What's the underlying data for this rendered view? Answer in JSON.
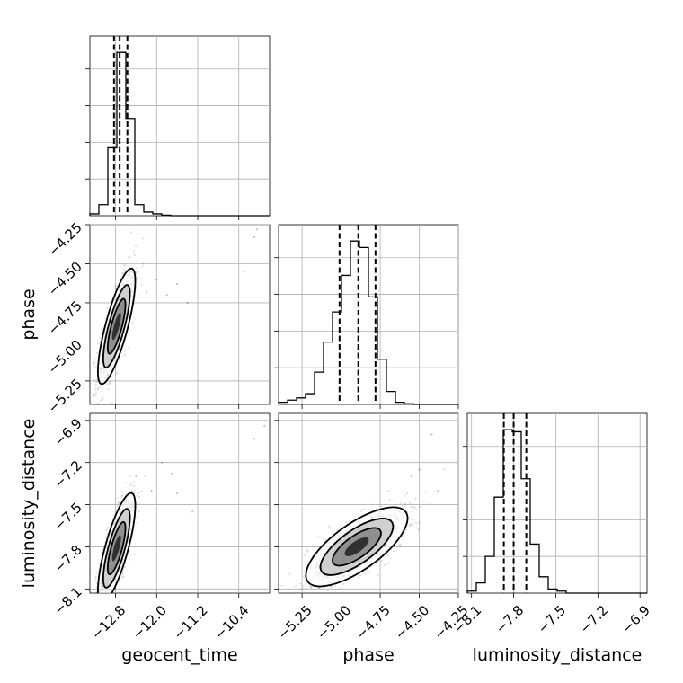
{
  "chart_data": {
    "type": "corner",
    "parameters": [
      {
        "key": "geocent_time",
        "label": "geocent_time",
        "range": [
          -13.3,
          -9.8
        ],
        "ticks": [
          -12.8,
          -12.0,
          -11.2,
          -10.4
        ],
        "tick_labels": [
          "−12.8",
          "−12.0",
          "−11.2",
          "−10.4"
        ],
        "quantiles": [
          -12.83,
          -12.72,
          -12.57
        ],
        "hist_edges": [
          -13.3,
          -13.125,
          -12.95,
          -12.775,
          -12.6,
          -12.425,
          -12.25,
          -12.075,
          -11.9,
          -11.725,
          -11.55,
          -11.375,
          -11.2,
          -11.025,
          -10.85,
          -10.675,
          -10.5,
          -10.325,
          -10.15,
          -9.975,
          -9.8
        ],
        "hist_counts": [
          1,
          6,
          37,
          89,
          53,
          6,
          2,
          1,
          0.3,
          0,
          0,
          0,
          0,
          0,
          0,
          0,
          0,
          0,
          0,
          0
        ]
      },
      {
        "key": "phase",
        "label": "phase",
        "range": [
          -5.4,
          -4.25
        ],
        "ticks": [
          -5.25,
          -5.0,
          -4.75,
          -4.5,
          -4.25
        ],
        "tick_labels": [
          "−5.25",
          "−5.00",
          "−4.75",
          "−4.50",
          "−4.25"
        ],
        "quantiles": [
          -5.01,
          -4.89,
          -4.78
        ],
        "hist_edges": [
          -5.4,
          -5.3425,
          -5.285,
          -5.2275,
          -5.17,
          -5.1125,
          -5.055,
          -4.9975,
          -4.94,
          -4.8825,
          -4.825,
          -4.7675,
          -4.71,
          -4.6525,
          -4.595,
          -4.5375,
          -4.48,
          -4.4225,
          -4.365,
          -4.3075,
          -4.25
        ],
        "hist_counts": [
          1,
          2,
          3,
          5,
          15,
          29,
          43,
          60,
          76,
          73,
          50,
          21,
          6,
          1,
          0.3,
          0,
          0,
          0,
          0,
          0
        ]
      },
      {
        "key": "luminosity_distance",
        "label": "luminosity_distance",
        "range": [
          -8.13,
          -6.85
        ],
        "ticks": [
          -8.1,
          -7.8,
          -7.5,
          -7.2,
          -6.9
        ],
        "tick_labels": [
          "−8.1",
          "−7.8",
          "−7.5",
          "−7.2",
          "−6.9"
        ],
        "quantiles": [
          -7.87,
          -7.8,
          -7.71
        ],
        "hist_edges": [
          -8.13,
          -8.066,
          -8.002,
          -7.938,
          -7.874,
          -7.81,
          -7.746,
          -7.682,
          -7.618,
          -7.554,
          -7.49,
          -7.426,
          -7.362,
          -7.298,
          -7.234,
          -7.17,
          -7.106,
          -7.042,
          -6.978,
          -6.914,
          -6.85
        ],
        "hist_counts": [
          1,
          5,
          18,
          47,
          80,
          79,
          56,
          24,
          8,
          2,
          1,
          0,
          0,
          0,
          0,
          0,
          0,
          0,
          0,
          0
        ]
      }
    ],
    "joint": [
      {
        "x": "geocent_time",
        "y": "phase",
        "center": [
          -12.78,
          -4.9
        ],
        "cov": [
          [
            0.03,
            0.024
          ],
          [
            0.024,
            0.031
          ]
        ],
        "n_points": 900,
        "outliers": [
          [
            -10.1,
            -4.33
          ],
          [
            -10.05,
            -4.28
          ],
          [
            -10.3,
            -4.55
          ],
          [
            -11.6,
            -4.63
          ],
          [
            -12.0,
            -4.6
          ],
          [
            -11.8,
            -4.7
          ],
          [
            -12.2,
            -4.68
          ],
          [
            -11.4,
            -4.75
          ]
        ]
      },
      {
        "x": "geocent_time",
        "y": "luminosity_distance",
        "center": [
          -12.78,
          -7.81
        ],
        "cov": [
          [
            0.03,
            0.025
          ],
          [
            0.025,
            0.035
          ]
        ],
        "n_points": 900,
        "outliers": [
          [
            -9.9,
            -6.94
          ],
          [
            -10.1,
            -7.03
          ],
          [
            -11.9,
            -7.2
          ],
          [
            -11.7,
            -7.28
          ],
          [
            -12.1,
            -7.4
          ],
          [
            -11.3,
            -7.55
          ],
          [
            -12.4,
            -7.3
          ],
          [
            -11.6,
            -7.42
          ]
        ]
      },
      {
        "x": "phase",
        "y": "luminosity_distance",
        "center": [
          -4.9,
          -7.8
        ],
        "cov": [
          [
            0.024,
            0.015
          ],
          [
            0.015,
            0.018
          ]
        ],
        "n_points": 1000,
        "outliers": [
          [
            -4.42,
            -7.0
          ],
          [
            -4.5,
            -7.25
          ],
          [
            -4.55,
            -7.3
          ],
          [
            -4.38,
            -7.4
          ]
        ]
      }
    ],
    "grid": true,
    "quantiles_shown": [
      0.16,
      0.5,
      0.84
    ]
  }
}
